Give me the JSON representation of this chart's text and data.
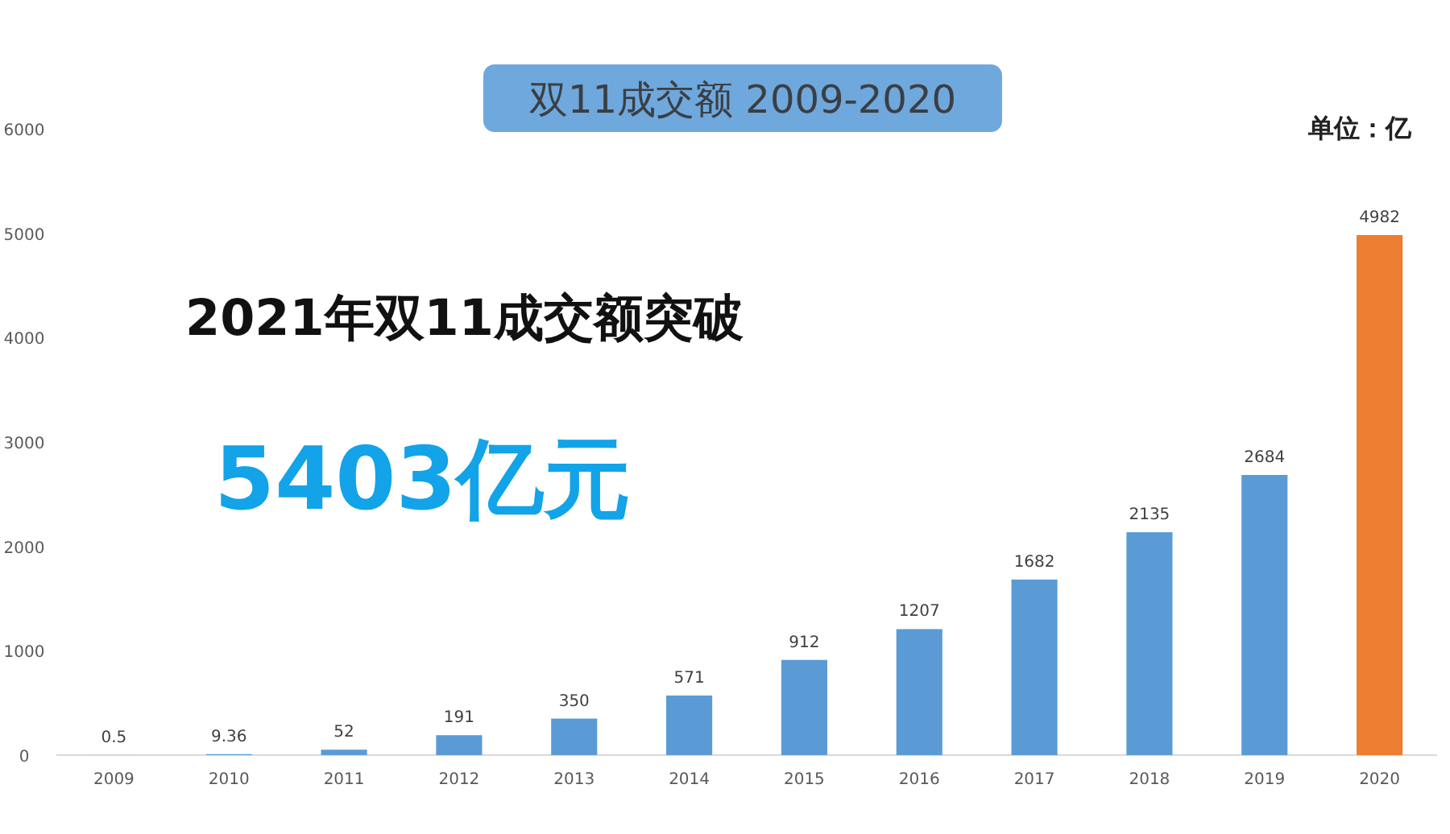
{
  "chart_data": {
    "type": "bar",
    "title": "双11成交额 2009-2020",
    "categories": [
      "2009",
      "2010",
      "2011",
      "2012",
      "2013",
      "2014",
      "2015",
      "2016",
      "2017",
      "2018",
      "2019",
      "2020"
    ],
    "values": [
      0.5,
      9.36,
      52,
      191,
      350,
      571,
      912,
      1207,
      1682,
      2135,
      2684,
      4982
    ],
    "colors": [
      "#5b9bd5",
      "#5b9bd5",
      "#5b9bd5",
      "#5b9bd5",
      "#5b9bd5",
      "#5b9bd5",
      "#5b9bd5",
      "#5b9bd5",
      "#5b9bd5",
      "#5b9bd5",
      "#5b9bd5",
      "#ed7d31"
    ],
    "ylim": [
      0,
      6000
    ],
    "yticks": [
      0,
      1000,
      2000,
      3000,
      4000,
      5000,
      6000
    ],
    "data_labels": true,
    "grid": false,
    "annotations": [
      "单位：亿",
      "2021年双11成交额突破",
      "5403亿元"
    ]
  }
}
